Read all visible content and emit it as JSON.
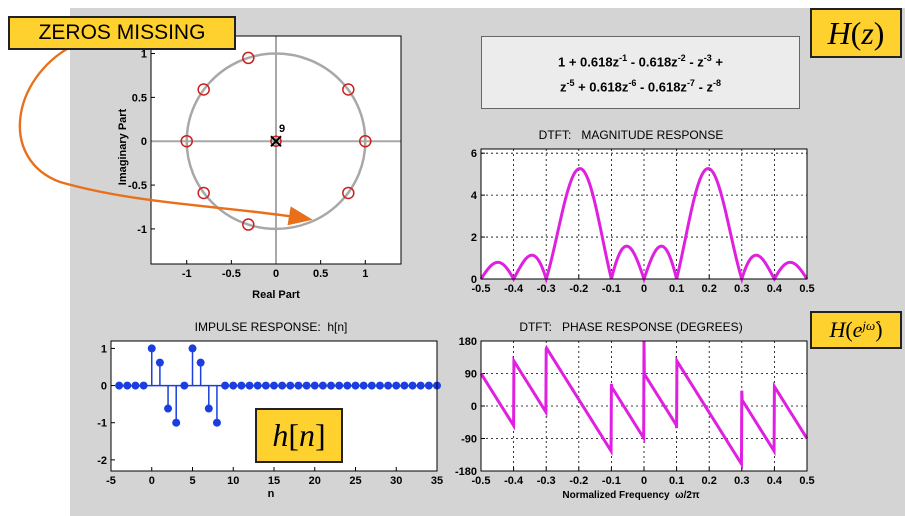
{
  "annotations": {
    "zeros_missing": "ZEROS MISSING",
    "hz_label": {
      "H": "H",
      "open": "(",
      "z": "z",
      "close": ")"
    },
    "hjw_label": {
      "H": "H",
      "open": "(",
      "e": "e",
      "exp": "jω̂",
      "close": ")"
    },
    "hn_label": {
      "h": "h",
      "open": "[",
      "n": "n",
      "close": "]"
    }
  },
  "formula": {
    "line1": [
      {
        "t": "1 + 0.618z",
        "sup": "-1"
      },
      {
        "t": " - 0.618z",
        "sup": "-2"
      },
      {
        "t": " - z",
        "sup": "-3"
      },
      {
        "t": " +",
        "sup": ""
      }
    ],
    "line2": [
      {
        "t": "z",
        "sup": "-5"
      },
      {
        "t": " + 0.618z",
        "sup": "-6"
      },
      {
        "t": " - 0.618z",
        "sup": "-7"
      },
      {
        "t": " - z",
        "sup": "-8"
      }
    ]
  },
  "chart_data": [
    {
      "type": "scatter",
      "title": "",
      "xlabel": "Real Part",
      "ylabel": "Imaginary Part",
      "xlim": [
        -1.4,
        1.4
      ],
      "ylim": [
        -1.4,
        1.2
      ],
      "xticks": [
        "-1",
        "-0.5",
        "0",
        "0.5",
        "1"
      ],
      "xtick_values": [
        -1,
        -0.5,
        0,
        0.5,
        1
      ],
      "yticks": [
        "1",
        "0.5",
        "0",
        "-0.5",
        "-1"
      ],
      "ytick_values": [
        1,
        0.5,
        0,
        -0.5,
        -1
      ],
      "unit_circle": true,
      "zeros": [
        [
          1,
          0
        ],
        [
          0.81,
          0.59
        ],
        [
          -0.31,
          0.95
        ],
        [
          -0.81,
          0.59
        ],
        [
          -1,
          0
        ],
        [
          -0.81,
          -0.59
        ],
        [
          -0.31,
          -0.95
        ],
        [
          0.81,
          -0.59
        ]
      ],
      "poles": [
        [
          0,
          0
        ]
      ],
      "pole_multiplicity": "9",
      "colors": {
        "zeros": "#cc2020",
        "poles": "#000000",
        "circle": "#a8a8a8",
        "axes": "#a8a8a8"
      }
    },
    {
      "type": "line",
      "title": "DTFT:   MAGNITUDE RESPONSE",
      "xlabel": "",
      "ylabel": "",
      "xlim": [
        -0.5,
        0.5
      ],
      "ylim": [
        0,
        6.2
      ],
      "xticks": [
        "-0.5",
        "-0.4",
        "-0.3",
        "-0.2",
        "-0.1",
        "0",
        "0.1",
        "0.2",
        "0.3",
        "0.4",
        "0.5"
      ],
      "xtick_values": [
        -0.5,
        -0.4,
        -0.3,
        -0.2,
        -0.1,
        0,
        0.1,
        0.2,
        0.3,
        0.4,
        0.5
      ],
      "yticks": [
        "6",
        "4",
        "2",
        "0"
      ],
      "ytick_values": [
        6,
        4,
        2,
        0
      ],
      "grid": true,
      "series": [
        {
          "coeffs": [
            1,
            0.618,
            -0.618,
            -1,
            0,
            1,
            0.618,
            -0.618,
            -1
          ],
          "color": "#e020e0"
        }
      ]
    },
    {
      "type": "stem",
      "title": "IMPULSE RESPONSE:  h[n]",
      "xlabel": "n",
      "ylabel": "",
      "xlim": [
        -5,
        35
      ],
      "ylim": [
        -2.3,
        1.2
      ],
      "xticks": [
        "-5",
        "0",
        "5",
        "10",
        "15",
        "20",
        "25",
        "30",
        "35"
      ],
      "xtick_values": [
        -5,
        0,
        5,
        10,
        15,
        20,
        25,
        30,
        35
      ],
      "yticks": [
        "1",
        "0",
        "-1",
        "-2"
      ],
      "ytick_values": [
        1,
        0,
        -1,
        -2
      ],
      "n_start": -4,
      "n_end": 35,
      "nonzero": {
        "0": 1,
        "1": 0.618,
        "2": -0.618,
        "3": -1,
        "4": 0,
        "5": 1,
        "6": 0.618,
        "7": -0.618,
        "8": -1
      },
      "color": "#1a3ee0"
    },
    {
      "type": "line",
      "title": "DTFT:   PHASE RESPONSE (DEGREES)",
      "xlabel": "Normalized Frequency  ω/2π",
      "ylabel": "",
      "xlim": [
        -0.5,
        0.5
      ],
      "ylim": [
        -180,
        180
      ],
      "xticks": [
        "-0.5",
        "-0.4",
        "-0.3",
        "-0.2",
        "-0.1",
        "0",
        "0.1",
        "0.2",
        "0.3",
        "0.4",
        "0.5"
      ],
      "xtick_values": [
        -0.5,
        -0.4,
        -0.3,
        -0.2,
        -0.1,
        0,
        0.1,
        0.2,
        0.3,
        0.4,
        0.5
      ],
      "yticks": [
        "180",
        "90",
        "0",
        "-90",
        "-180"
      ],
      "ytick_values": [
        180,
        90,
        0,
        -90,
        -180
      ],
      "grid": true,
      "series": [
        {
          "coeffs": [
            1,
            0.618,
            -0.618,
            -1,
            0,
            1,
            0.618,
            -0.618,
            -1
          ],
          "color": "#e020e0"
        }
      ]
    }
  ]
}
